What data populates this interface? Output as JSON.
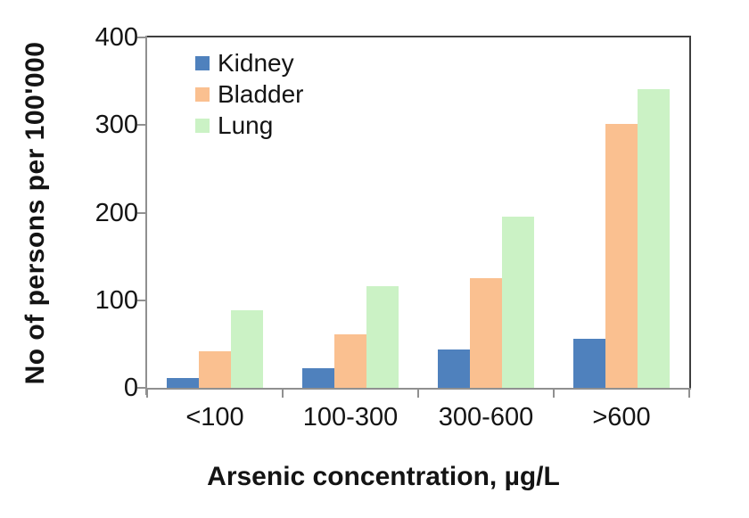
{
  "chart_data": {
    "type": "bar",
    "title": "",
    "categories": [
      "<100",
      "100-300",
      "300-600",
      ">600"
    ],
    "series": [
      {
        "name": "Kidney",
        "color": "#4F81BD",
        "values": [
          11,
          22,
          44,
          56
        ]
      },
      {
        "name": "Bladder",
        "color": "#FAC090",
        "values": [
          42,
          61,
          125,
          301
        ]
      },
      {
        "name": "Lung",
        "color": "#CBF2C5",
        "values": [
          89,
          116,
          195,
          341
        ]
      }
    ],
    "xlabel": "Arsenic concentration, µg/L",
    "ylabel": "No of persons per 100'000",
    "ylim": [
      0,
      400
    ],
    "yticks": [
      0,
      100,
      200,
      300,
      400
    ],
    "legend_position": "top-left",
    "grid": false,
    "axis_colors": {
      "frame_dark": "#3f3f3f",
      "axis_gray": "#909090",
      "text": "#141414"
    }
  }
}
